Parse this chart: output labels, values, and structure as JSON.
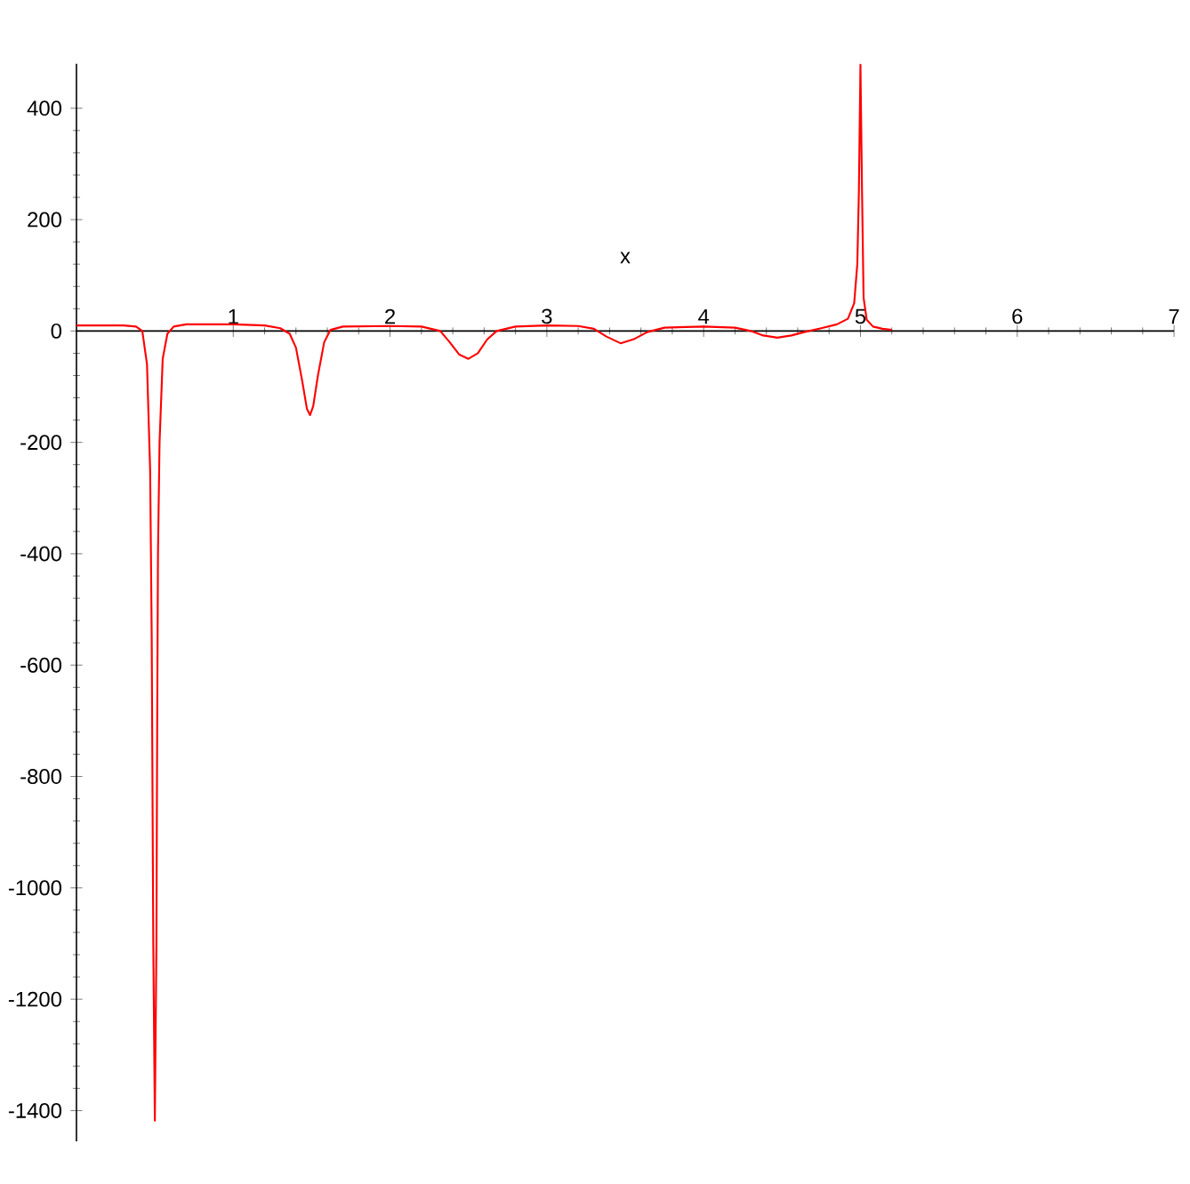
{
  "chart_data": {
    "type": "line",
    "xlabel": "x",
    "xlim": [
      0,
      7
    ],
    "ylim": [
      -1455,
      480
    ],
    "xticks": [
      1,
      2,
      3,
      4,
      5,
      6,
      7
    ],
    "yticks": [
      -1400,
      -1200,
      -1000,
      -800,
      -600,
      -400,
      -200,
      0,
      200,
      400
    ],
    "x": [
      0,
      0.2,
      0.3,
      0.38,
      0.42,
      0.45,
      0.47,
      0.48,
      0.49,
      0.5,
      0.51,
      0.515,
      0.52,
      0.53,
      0.55,
      0.58,
      0.62,
      0.7,
      1.0,
      1.2,
      1.3,
      1.36,
      1.4,
      1.44,
      1.47,
      1.49,
      1.51,
      1.54,
      1.58,
      1.62,
      1.7,
      2.0,
      2.2,
      2.32,
      2.38,
      2.44,
      2.5,
      2.56,
      2.62,
      2.68,
      2.8,
      3.0,
      3.2,
      3.3,
      3.38,
      3.47,
      3.56,
      3.64,
      3.75,
      4.0,
      4.2,
      4.3,
      4.38,
      4.47,
      4.56,
      4.64,
      4.75,
      4.85,
      4.92,
      4.96,
      4.98,
      4.99,
      5.0,
      5.01,
      5.02,
      5.04,
      5.08,
      5.14,
      5.2
    ],
    "series": [
      {
        "color": "#ff0000",
        "values": [
          10,
          10,
          10,
          8,
          0,
          -60,
          -250,
          -550,
          -1100,
          -1418,
          -1100,
          -700,
          -400,
          -200,
          -50,
          -5,
          8,
          12,
          12,
          10,
          5,
          -5,
          -30,
          -90,
          -140,
          -151,
          -135,
          -80,
          -20,
          2,
          8,
          9,
          8,
          0,
          -20,
          -42,
          -50,
          -40,
          -15,
          0,
          8,
          10,
          9,
          4,
          -10,
          -22,
          -14,
          -2,
          6,
          8,
          6,
          0,
          -8,
          -12,
          -8,
          -2,
          5,
          12,
          22,
          50,
          120,
          250,
          478,
          250,
          60,
          20,
          8,
          4,
          2
        ]
      }
    ]
  }
}
